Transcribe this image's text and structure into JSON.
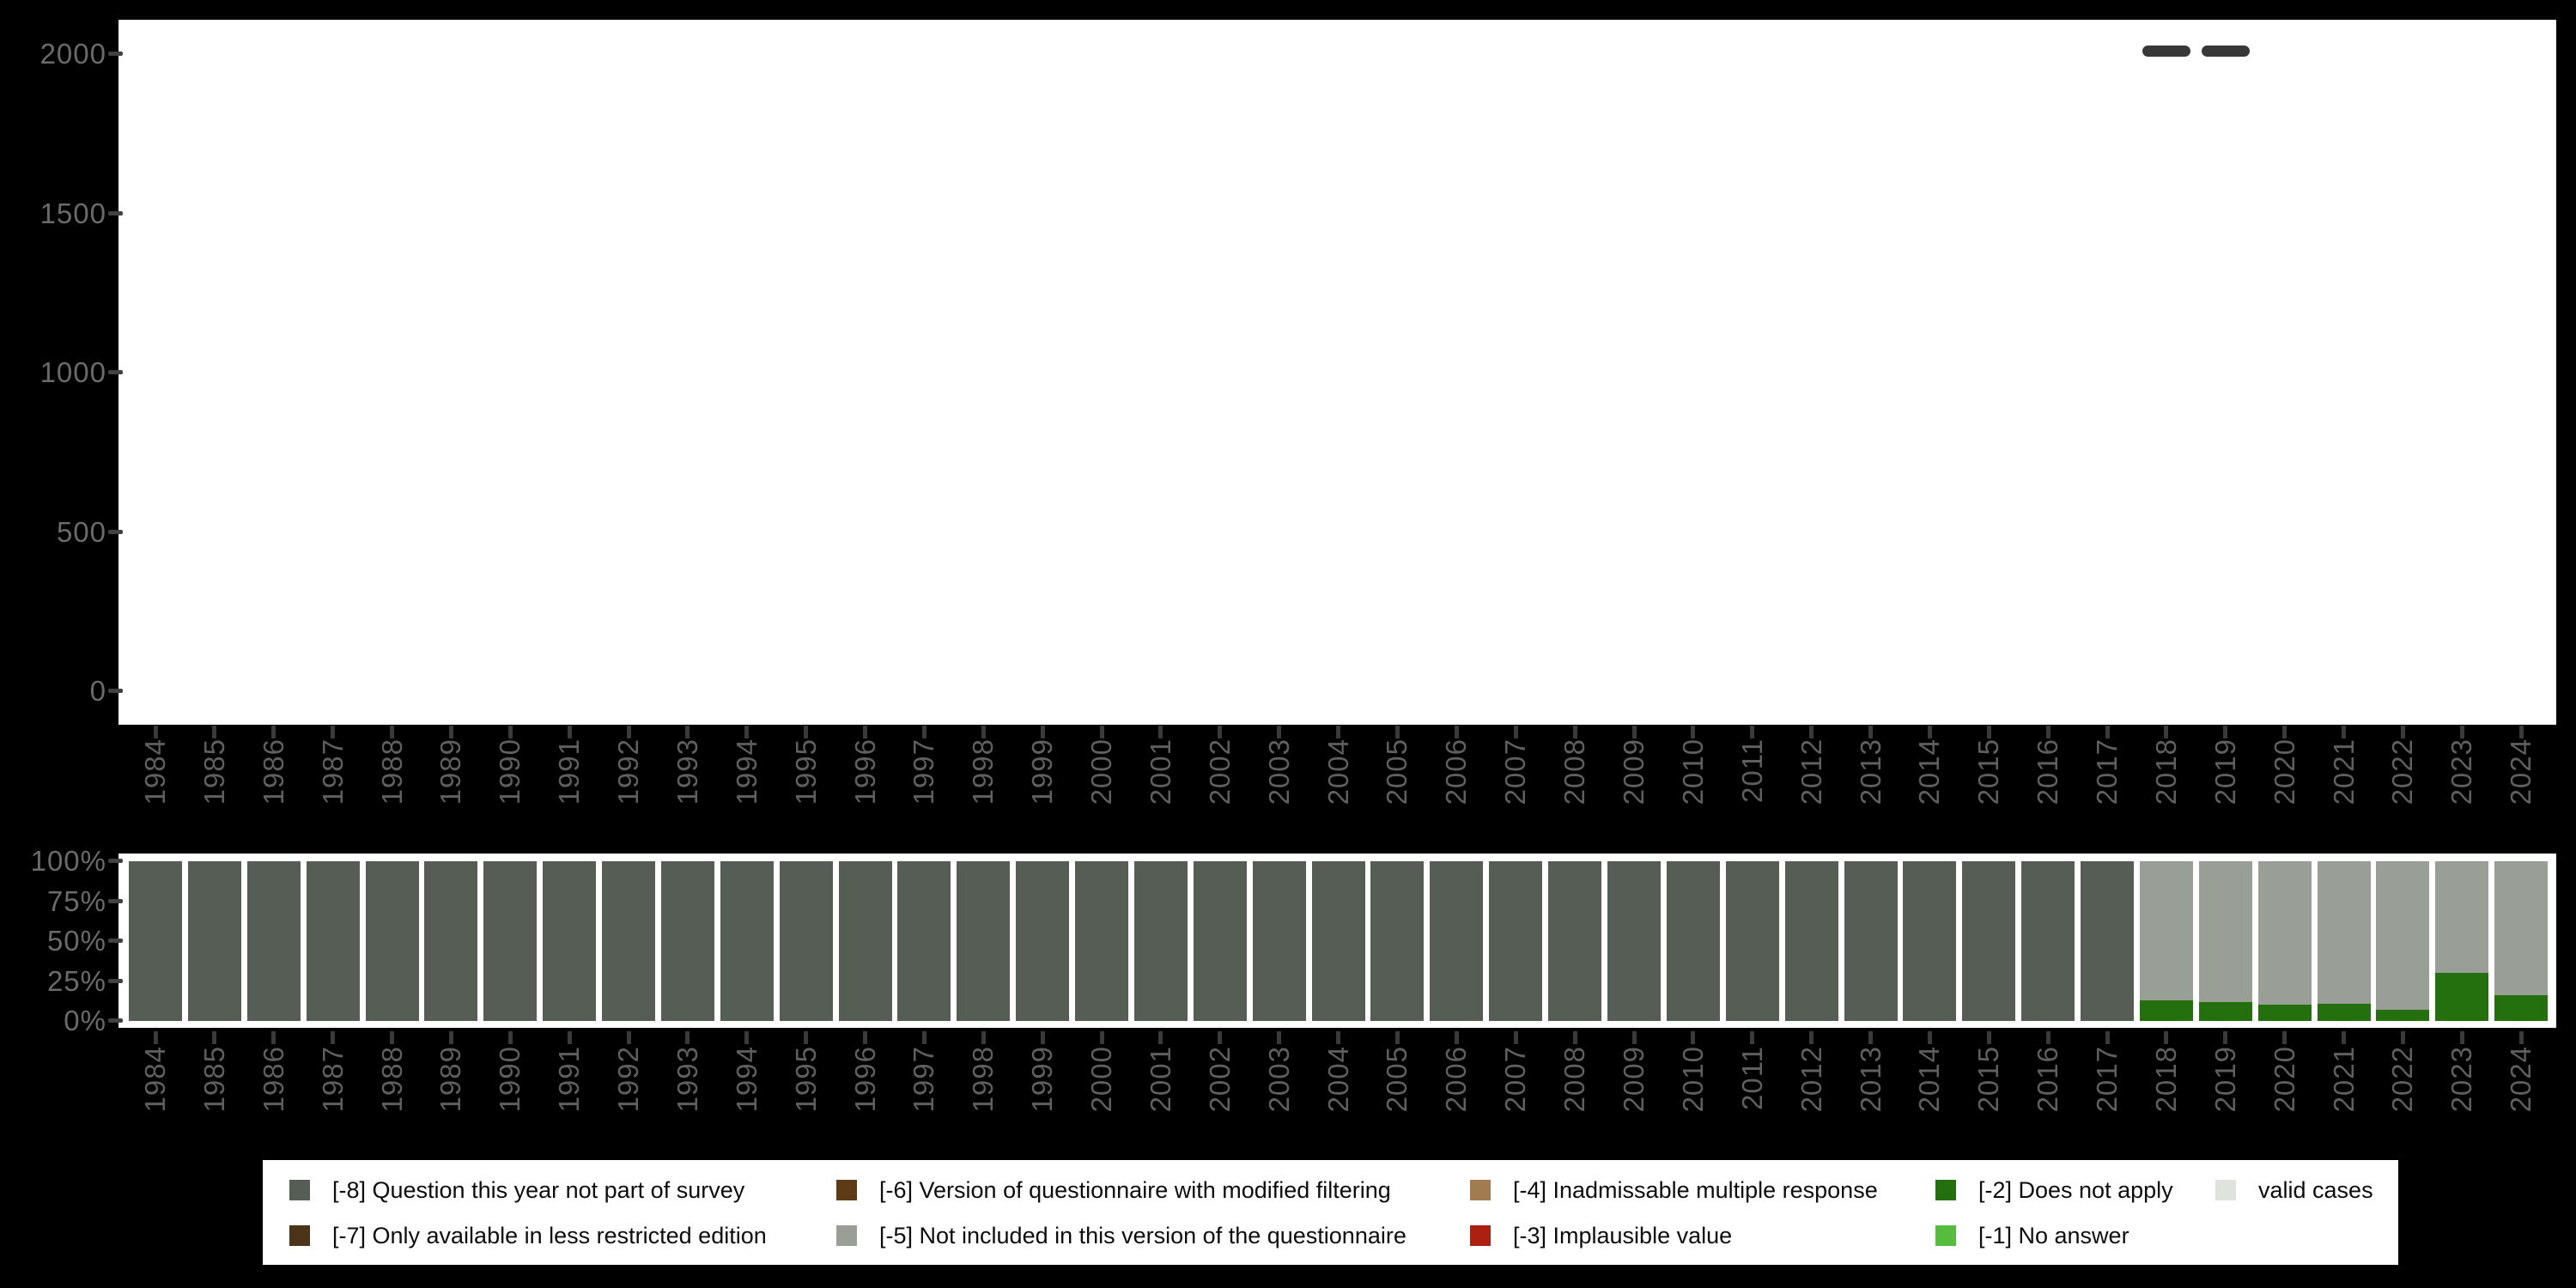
{
  "colors": {
    "background": "#000000",
    "panel": "#ffffff",
    "axis_text_y": "#6a6a6a",
    "axis_text_x": "#5f5f5f",
    "tick": "#3f3f3f",
    "valid_cases_marker": "#383838",
    "legend_background": "#ffffff",
    "legend_text": "#0d0d0d"
  },
  "chart_data": [
    {
      "type": "bar",
      "id": "valid-cases-count",
      "title": "",
      "xlabel": "",
      "ylabel": "",
      "ylim": [
        0,
        2000
      ],
      "grid": false,
      "categories": [
        "1984",
        "1985",
        "1986",
        "1987",
        "1988",
        "1989",
        "1990",
        "1991",
        "1992",
        "1993",
        "1994",
        "1995",
        "1996",
        "1997",
        "1998",
        "1999",
        "2000",
        "2001",
        "2002",
        "2003",
        "2004",
        "2005",
        "2006",
        "2007",
        "2008",
        "2009",
        "2010",
        "2011",
        "2012",
        "2013",
        "2014",
        "2015",
        "2016",
        "2017",
        "2018",
        "2019",
        "2020",
        "2021",
        "2022",
        "2023",
        "2024"
      ],
      "yticks": [
        {
          "label": "2000",
          "value": 2000
        },
        {
          "label": "1500",
          "value": 1500
        },
        {
          "label": "1000",
          "value": 1000
        },
        {
          "label": "500",
          "value": 500
        },
        {
          "label": "0",
          "value": 0
        }
      ],
      "series": [
        {
          "name": "valid cases",
          "marker": "dash",
          "color": "#383838",
          "values": [
            null,
            null,
            null,
            null,
            null,
            null,
            null,
            null,
            null,
            null,
            null,
            null,
            null,
            null,
            null,
            null,
            null,
            null,
            null,
            null,
            null,
            null,
            null,
            null,
            null,
            null,
            null,
            null,
            null,
            null,
            null,
            null,
            null,
            null,
            2009,
            2009,
            null,
            null,
            null,
            null,
            null
          ]
        }
      ]
    },
    {
      "type": "bar",
      "id": "missing-values-percent",
      "title": "",
      "xlabel": "",
      "ylabel": "",
      "stacked": true,
      "unit": "%",
      "ylim": [
        0,
        100
      ],
      "grid": false,
      "categories": [
        "1984",
        "1985",
        "1986",
        "1987",
        "1988",
        "1989",
        "1990",
        "1991",
        "1992",
        "1993",
        "1994",
        "1995",
        "1996",
        "1997",
        "1998",
        "1999",
        "2000",
        "2001",
        "2002",
        "2003",
        "2004",
        "2005",
        "2006",
        "2007",
        "2008",
        "2009",
        "2010",
        "2011",
        "2012",
        "2013",
        "2014",
        "2015",
        "2016",
        "2017",
        "2018",
        "2019",
        "2020",
        "2021",
        "2022",
        "2023",
        "2024"
      ],
      "yticks": [
        {
          "label": "100%",
          "value": 100
        },
        {
          "label": "75%",
          "value": 75
        },
        {
          "label": "50%",
          "value": 50
        },
        {
          "label": "25%",
          "value": 25
        },
        {
          "label": "0%",
          "value": 0
        }
      ],
      "series": [
        {
          "code": "-8",
          "name": "[-8] Question this year not part of survey",
          "color": "#555d55",
          "values": [
            100,
            100,
            100,
            100,
            100,
            100,
            100,
            100,
            100,
            100,
            100,
            100,
            100,
            100,
            100,
            100,
            100,
            100,
            100,
            100,
            100,
            100,
            100,
            100,
            100,
            100,
            100,
            100,
            100,
            100,
            100,
            100,
            100,
            100,
            0,
            0,
            0,
            0,
            0,
            0,
            0
          ]
        },
        {
          "code": "-5",
          "name": "[-5] Not included in this version of the questionnaire",
          "color": "#999f97",
          "values": [
            0,
            0,
            0,
            0,
            0,
            0,
            0,
            0,
            0,
            0,
            0,
            0,
            0,
            0,
            0,
            0,
            0,
            0,
            0,
            0,
            0,
            0,
            0,
            0,
            0,
            0,
            0,
            0,
            0,
            0,
            0,
            0,
            0,
            0,
            87,
            88,
            90,
            89,
            93,
            70,
            84
          ]
        },
        {
          "code": "-2",
          "name": "[-2] Does not apply",
          "color": "#24700f",
          "values": [
            0,
            0,
            0,
            0,
            0,
            0,
            0,
            0,
            0,
            0,
            0,
            0,
            0,
            0,
            0,
            0,
            0,
            0,
            0,
            0,
            0,
            0,
            0,
            0,
            0,
            0,
            0,
            0,
            0,
            0,
            0,
            0,
            0,
            0,
            13,
            12,
            10,
            11,
            7,
            30,
            16
          ]
        }
      ]
    }
  ],
  "legend": {
    "items": [
      {
        "label": "[-8] Question this year not part of survey",
        "color": "#555d55"
      },
      {
        "label": "[-6] Version of questionnaire with modified filtering",
        "color": "#5e3b17"
      },
      {
        "label": "[-4] Inadmissable multiple response",
        "color": "#a17c51"
      },
      {
        "label": "[-2] Does not apply",
        "color": "#24700f"
      },
      {
        "label": "valid cases",
        "color": "#dee3dd"
      },
      {
        "label": "[-7] Only available in less restricted edition",
        "color": "#4b3418"
      },
      {
        "label": "[-5] Not included in this version of the questionnaire",
        "color": "#999f97"
      },
      {
        "label": "[-3] Implausible value",
        "color": "#ab2011"
      },
      {
        "label": "[-1] No answer",
        "color": "#56bc3e"
      }
    ]
  }
}
